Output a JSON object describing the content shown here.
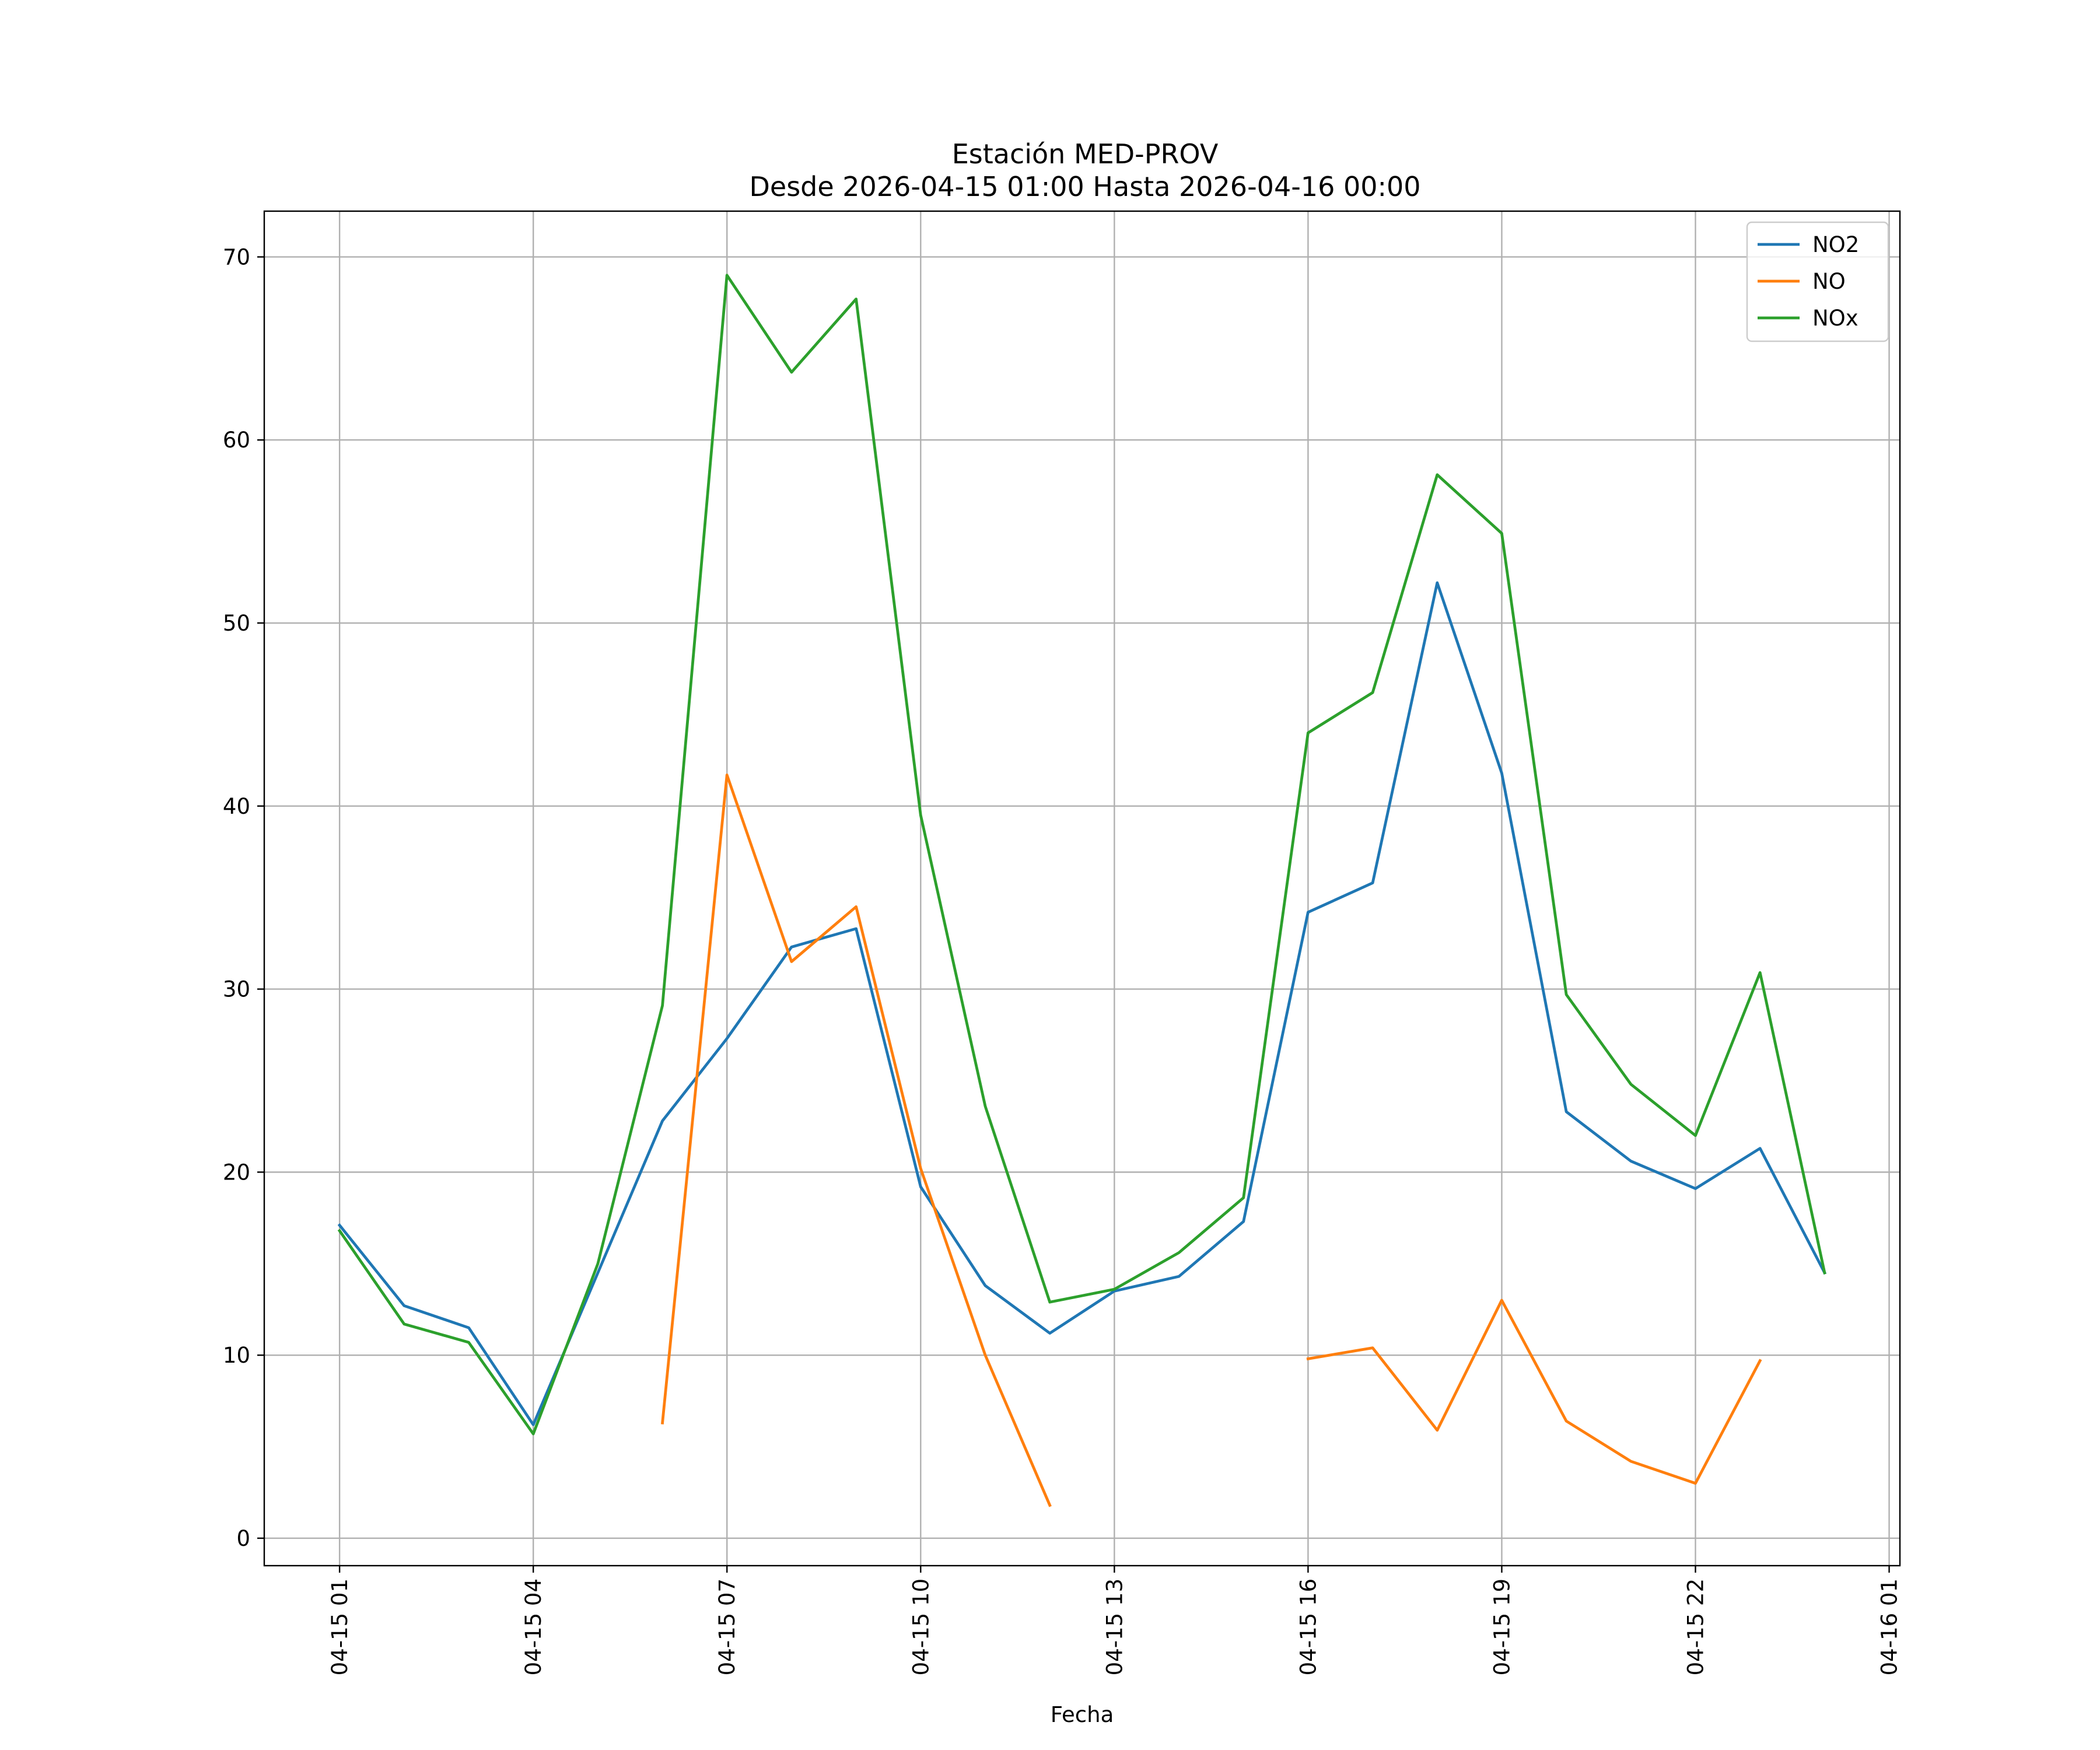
{
  "chart_data": {
    "type": "line",
    "title": "Estación MED-PROV",
    "subtitle": "Desde 2026-04-15 01:00 Hasta 2026-04-16 00:00",
    "xlabel": "Fecha",
    "ylabel": "",
    "x": [
      "2026-04-15 01:00",
      "2026-04-15 02:00",
      "2026-04-15 03:00",
      "2026-04-15 04:00",
      "2026-04-15 05:00",
      "2026-04-15 06:00",
      "2026-04-15 07:00",
      "2026-04-15 08:00",
      "2026-04-15 09:00",
      "2026-04-15 10:00",
      "2026-04-15 11:00",
      "2026-04-15 12:00",
      "2026-04-15 13:00",
      "2026-04-15 14:00",
      "2026-04-15 15:00",
      "2026-04-15 16:00",
      "2026-04-15 17:00",
      "2026-04-15 18:00",
      "2026-04-15 19:00",
      "2026-04-15 20:00",
      "2026-04-15 21:00",
      "2026-04-15 22:00",
      "2026-04-15 23:00",
      "2026-04-16 00:00"
    ],
    "series": [
      {
        "name": "NO2",
        "color": "#1f77b4",
        "values": [
          17.1,
          12.7,
          11.5,
          6.2,
          14.5,
          22.8,
          27.3,
          32.3,
          33.3,
          19.2,
          13.8,
          11.2,
          13.5,
          14.3,
          17.3,
          34.2,
          35.8,
          52.2,
          41.8,
          23.3,
          20.6,
          19.1,
          21.3,
          14.5
        ]
      },
      {
        "name": "NO",
        "color": "#ff7f0e",
        "values": [
          null,
          null,
          null,
          null,
          null,
          6.3,
          41.7,
          31.5,
          34.5,
          20.2,
          10.0,
          1.8,
          null,
          null,
          null,
          9.8,
          10.4,
          5.9,
          13.0,
          6.4,
          4.2,
          3.0,
          9.7,
          null
        ]
      },
      {
        "name": "NOx",
        "color": "#2ca02c",
        "values": [
          16.8,
          11.7,
          10.7,
          5.7,
          15.0,
          29.1,
          69.0,
          63.7,
          67.7,
          39.5,
          23.6,
          12.9,
          13.6,
          15.6,
          18.6,
          44.0,
          46.2,
          58.1,
          54.9,
          29.7,
          24.8,
          22.0,
          30.9,
          14.5
        ]
      }
    ],
    "x_ticks": [
      "04-15 01",
      "04-15 04",
      "04-15 07",
      "04-15 10",
      "04-15 13",
      "04-15 16",
      "04-15 19",
      "04-15 22",
      "04-16 01"
    ],
    "y_ticks": [
      "0",
      "10",
      "20",
      "30",
      "40",
      "50",
      "60",
      "70"
    ],
    "ylim": [
      -1.5,
      72.5
    ],
    "xlim": [
      "2026-04-14 23:50",
      "2026-04-16 01:10"
    ],
    "grid": true,
    "legend_position": "top-right"
  }
}
